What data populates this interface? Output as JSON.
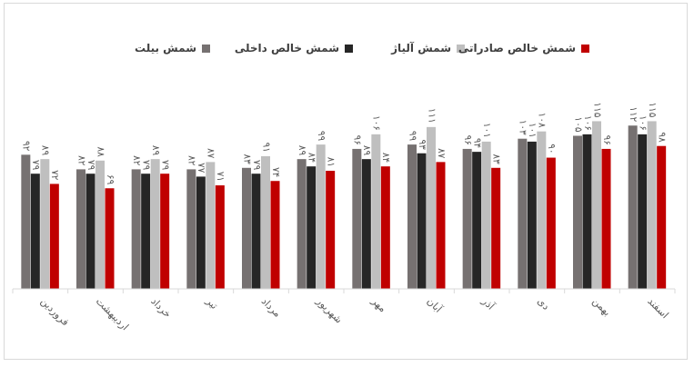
{
  "chart_data": {
    "type": "bar",
    "categories": [
      "فروردین",
      "اردیبهشت",
      "خرداد",
      "تیر",
      "مرداد",
      "شهریور",
      "مهر",
      "آبان",
      "آذر",
      "دی",
      "بهمن",
      "اسفند"
    ],
    "series": [
      {
        "name": "شمش بیلت",
        "color": "#767171",
        "values": [
          92,
          82,
          82,
          82,
          83,
          89,
          96,
          99,
          96,
          103,
          105,
          112
        ],
        "labels": [
          "۹۲",
          "۸۲",
          "۸۲",
          "۸۲",
          "۸۳",
          "۸۹",
          "۹۶",
          "۹۹",
          "۹۶",
          "۱۰۳",
          "۱۰۵",
          "۱۱۲"
        ]
      },
      {
        "name": "شمش خالص داخلی",
        "color": "#262626",
        "values": [
          79,
          79,
          79,
          77,
          79,
          84,
          89,
          93,
          94,
          101,
          106,
          106
        ],
        "labels": [
          "۷۹",
          "۷۹",
          "۷۹",
          "۷۷",
          "۷۹",
          "۸۴",
          "۸۹",
          "۹۳",
          "۹۴",
          "۱۰۱",
          "۱۰۶",
          "۱۰۶"
        ]
      },
      {
        "name": "شمش آلیاژ",
        "color": "#bfbfbf",
        "values": [
          89,
          88,
          89,
          87,
          91,
          99,
          106,
          111,
          101,
          108,
          115,
          115
        ],
        "labels": [
          "۸۹",
          "۸۸",
          "۸۹",
          "۸۷",
          "۹۱",
          "۹۹",
          "۱۰۶",
          "۱۱۱",
          "۱۰۱",
          "۱۰۸",
          "۱۱۵",
          "۱۱۵"
        ]
      },
      {
        "name": "شمش خالص صادراتی",
        "color": "#c00000",
        "values": [
          72,
          69,
          79,
          71,
          74,
          81,
          84,
          87,
          83,
          90,
          96,
          98
        ],
        "labels": [
          "۷۲",
          "۶۹",
          "۷۹",
          "۷۱",
          "۷۴",
          "۸۱",
          "۸۴",
          "۸۷",
          "۸۳",
          "۹۰",
          "۹۶",
          "۹۸"
        ]
      }
    ],
    "ylim": [
      0,
      125
    ],
    "grid": false,
    "legend_position": "top"
  }
}
